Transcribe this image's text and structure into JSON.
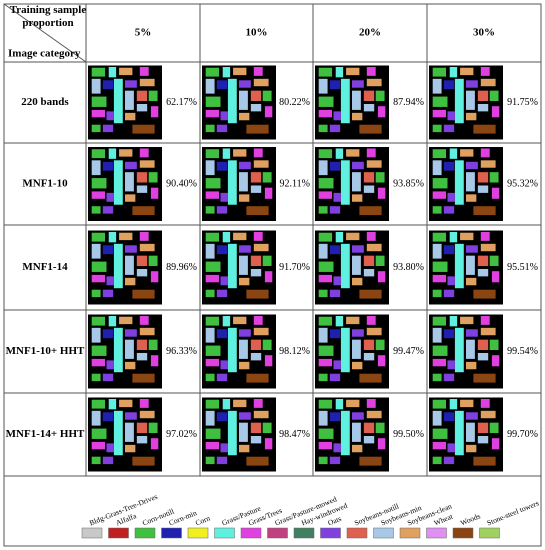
{
  "header": {
    "corner_top": "Training sample proportion",
    "corner_bottom": "Image category",
    "columns": [
      "5%",
      "10%",
      "20%",
      "30%"
    ]
  },
  "rows": [
    {
      "label": "220 bands",
      "accuracies": [
        "62.17%",
        "80.22%",
        "87.94%",
        "91.75%"
      ]
    },
    {
      "label": "MNF1-10",
      "accuracies": [
        "90.40%",
        "92.11%",
        "93.85%",
        "95.32%"
      ]
    },
    {
      "label": "MNF1-14",
      "accuracies": [
        "89.96%",
        "91.70%",
        "93.80%",
        "95.51%"
      ]
    },
    {
      "label": "MNF1-10+ HHT",
      "accuracies": [
        "96.33%",
        "98.12%",
        "99.47%",
        "99.54%"
      ]
    },
    {
      "label": "MNF1-14+ HHT",
      "accuracies": [
        "97.02%",
        "98.47%",
        "99.50%",
        "99.70%"
      ]
    }
  ],
  "legend": [
    {
      "label": "Bldg-Grass-Tree-Drives",
      "color": "#c8c8c8"
    },
    {
      "label": "Alfalfa",
      "color": "#c02020"
    },
    {
      "label": "Corn-notill",
      "color": "#40c040"
    },
    {
      "label": "Corn-min",
      "color": "#2020b0"
    },
    {
      "label": "Corn",
      "color": "#f0f020"
    },
    {
      "label": "Grass/Pasture",
      "color": "#60f0e0"
    },
    {
      "label": "Grass/Trees",
      "color": "#e040e0"
    },
    {
      "label": "Grass/Pasture-mowed",
      "color": "#c04080"
    },
    {
      "label": "Hay-windrowed",
      "color": "#408060"
    },
    {
      "label": "Oats",
      "color": "#8040e0"
    },
    {
      "label": "Soybeans-notill",
      "color": "#e06050"
    },
    {
      "label": "Soybeans-min",
      "color": "#a8c8e8"
    },
    {
      "label": "Soybeans-clean",
      "color": "#e0a060"
    },
    {
      "label": "Wheat",
      "color": "#e090f0"
    },
    {
      "label": "Woods",
      "color": "#8b4513"
    },
    {
      "label": "Stone-steel towers",
      "color": "#a0d060"
    }
  ]
}
